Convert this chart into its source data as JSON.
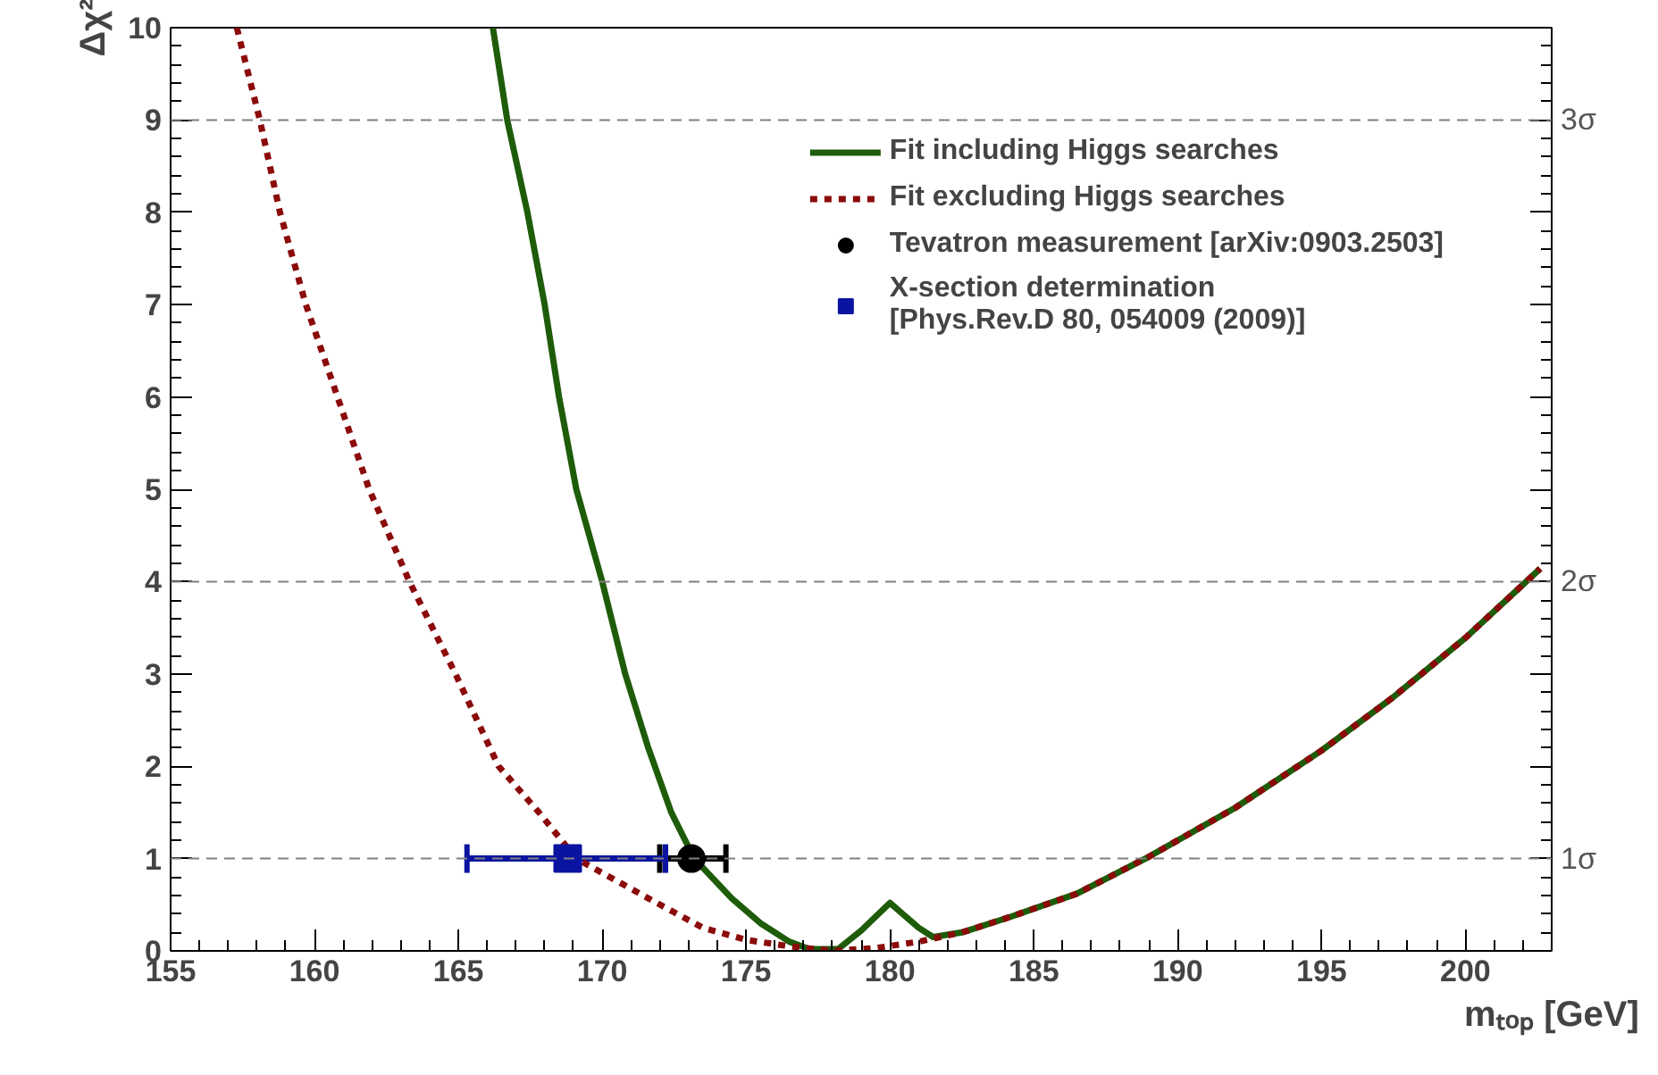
{
  "chart_data": {
    "type": "line",
    "xlabel": "mₜₒₚ [GeV]",
    "ylabel": "Δχ²",
    "xlim": [
      155,
      203
    ],
    "ylim": [
      0,
      10
    ],
    "xticks": [
      155,
      160,
      165,
      170,
      175,
      180,
      185,
      190,
      195,
      200
    ],
    "yticks": [
      0,
      1,
      2,
      3,
      4,
      5,
      6,
      7,
      8,
      9,
      10
    ],
    "legend": "top right",
    "grid": false,
    "ref_lines": [
      {
        "axis": "y",
        "value": 1,
        "label": "1σ",
        "color": "#808080",
        "line_style": "dashed"
      },
      {
        "axis": "y",
        "value": 4,
        "label": "2σ",
        "color": "#808080",
        "line_style": "dashed"
      },
      {
        "axis": "y",
        "value": 9,
        "label": "3σ",
        "color": "#808080",
        "line_style": "dashed"
      }
    ],
    "series": [
      {
        "name": "Fit including Higgs searches",
        "color": "#1e5c0a",
        "line_style": "solid",
        "x": [
          166.2,
          166.7,
          167.4,
          168.0,
          168.5,
          169.1,
          170.0,
          170.8,
          171.6,
          172.4,
          173.2,
          174.5,
          175.5,
          176.5,
          177.2,
          178.2,
          179.0,
          180.0,
          181.0,
          181.5,
          182.5,
          184.2,
          186.5,
          189.0,
          192.0,
          195.0,
          197.5,
          200.0,
          202.6
        ],
        "values": [
          10,
          9,
          8,
          7,
          6,
          5,
          4,
          3,
          2.2,
          1.5,
          1.0,
          0.57,
          0.3,
          0.1,
          0.02,
          0.02,
          0.22,
          0.52,
          0.25,
          0.15,
          0.2,
          0.37,
          0.62,
          1.02,
          1.55,
          2.17,
          2.75,
          3.39,
          4.14
        ]
      },
      {
        "name": "Fit excluding Higgs searches",
        "color": "#8b0a0a",
        "line_style": "dotted",
        "x": [
          157.3,
          158.1,
          158.8,
          159.7,
          160.8,
          161.9,
          163.3,
          164.9,
          166.4,
          167.8,
          169.1,
          171.6,
          173.5,
          175.0,
          176.5,
          178.0,
          179.5,
          181.0,
          182.5,
          184.2,
          186.5,
          189.0,
          192.0,
          195.0,
          197.5,
          200.0,
          202.6
        ],
        "values": [
          10,
          9,
          8,
          7,
          6,
          5,
          4,
          3,
          2,
          1.5,
          1,
          0.57,
          0.25,
          0.12,
          0.05,
          0.0,
          0.03,
          0.1,
          0.2,
          0.37,
          0.62,
          1.02,
          1.55,
          2.17,
          2.75,
          3.39,
          4.14
        ]
      },
      {
        "name": "Tevatron measurement [arXiv:0903.2503]",
        "type": "scatter",
        "color": "#000000",
        "marker": "circle",
        "x": [
          173.1
        ],
        "values": [
          1
        ],
        "xerrors": [
          [
            172.0,
            174.3
          ]
        ]
      },
      {
        "name": "X-section determination\n[Phys.Rev.D 80, 054009 (2009)]",
        "type": "scatter",
        "color": "#0a14a0",
        "marker": "square",
        "x": [
          168.8
        ],
        "values": [
          1
        ],
        "xerrors": [
          [
            165.3,
            172.2
          ]
        ]
      }
    ]
  }
}
